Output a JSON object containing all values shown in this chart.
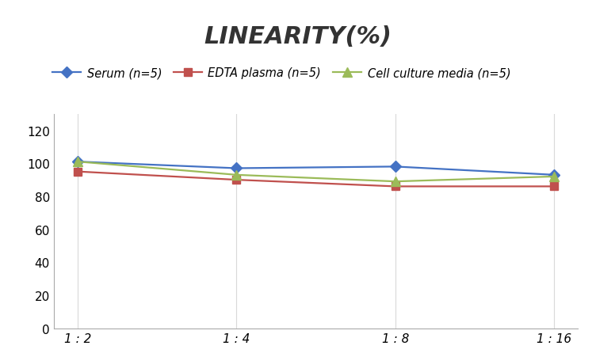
{
  "title": "LINEARITY(%)",
  "x_labels": [
    "1 : 2",
    "1 : 4",
    "1 : 8",
    "1 : 16"
  ],
  "x_positions": [
    0,
    1,
    2,
    3
  ],
  "series": [
    {
      "label": "Serum (n=5)",
      "values": [
        101,
        97,
        98,
        93
      ],
      "color": "#4472C4",
      "marker": "D",
      "markersize": 7
    },
    {
      "label": "EDTA plasma (n=5)",
      "values": [
        95,
        90,
        86,
        86
      ],
      "color": "#C0504D",
      "marker": "s",
      "markersize": 7
    },
    {
      "label": "Cell culture media (n=5)",
      "values": [
        101,
        93,
        89,
        92
      ],
      "color": "#9BBB59",
      "marker": "^",
      "markersize": 8
    }
  ],
  "ylim": [
    0,
    130
  ],
  "yticks": [
    0,
    20,
    40,
    60,
    80,
    100,
    120
  ],
  "grid_color": "#D9D9D9",
  "background_color": "#FFFFFF",
  "title_fontsize": 22,
  "legend_fontsize": 10.5,
  "tick_fontsize": 11
}
